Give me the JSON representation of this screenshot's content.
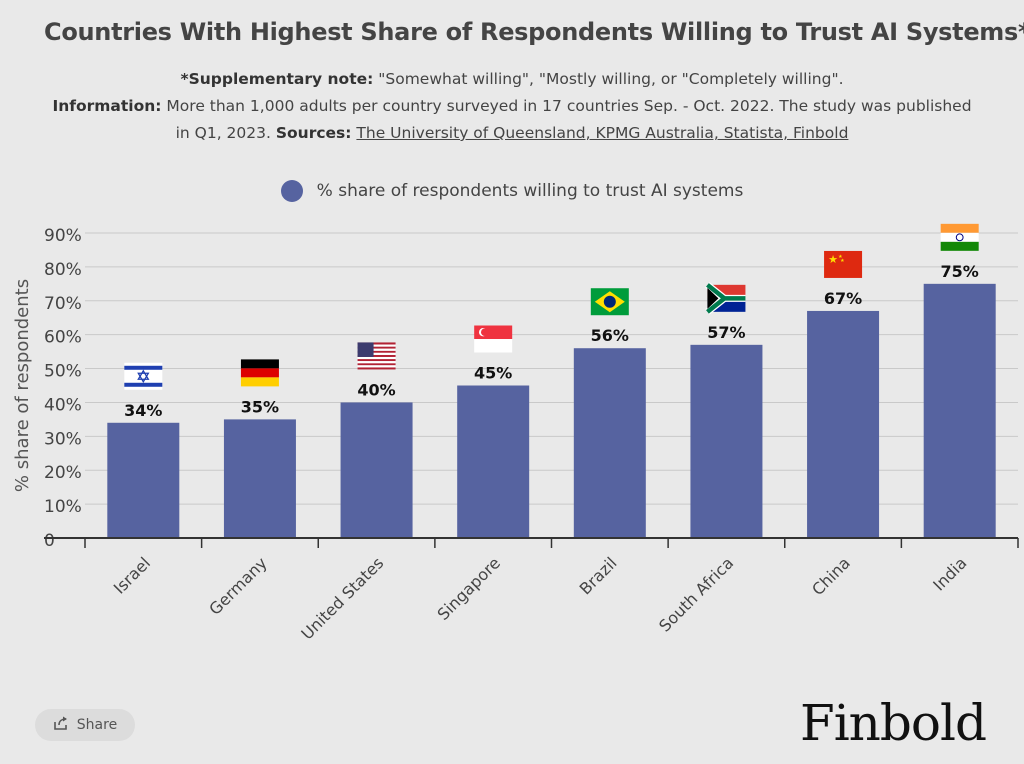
{
  "header": {
    "title": "Countries With Highest Share of Respondents Willing to Trust AI Systems*",
    "note_label": "*Supplementary note:",
    "note_text": " \"Somewhat willing\", \"Mostly willing, or \"Completely willing\".",
    "info_label": "Information:",
    "info_text_1": " More than 1,000 adults per country surveyed in 17 countries Sep. - Oct. 2022. The study was published",
    "info_text_2": "in Q1, 2023. ",
    "sources_label": "Sources:",
    "sources_text": "The University of Queensland, KPMG Australia, Statista, Finbold"
  },
  "chart_data": {
    "type": "bar",
    "title": "Countries With Highest Share of Respondents Willing to Trust AI Systems*",
    "categories": [
      "Israel",
      "Germany",
      "United States",
      "Singapore",
      "Brazil",
      "South Africa",
      "China",
      "India"
    ],
    "series": [
      {
        "name": "% share of respondents willing to trust AI systems",
        "values": [
          34,
          35,
          40,
          45,
          56,
          57,
          67,
          75
        ]
      }
    ],
    "data_labels": [
      "34%",
      "35%",
      "40%",
      "45%",
      "56%",
      "57%",
      "67%",
      "75%"
    ],
    "ylabel": "% share of respondents",
    "xlabel": "",
    "ylim": [
      0,
      90
    ],
    "yticks": [
      0,
      10,
      20,
      30,
      40,
      50,
      60,
      70,
      80,
      90
    ],
    "ytick_labels": [
      "0",
      "10%",
      "20%",
      "30%",
      "40%",
      "50%",
      "60%",
      "70%",
      "80%",
      "90%"
    ],
    "grid": true,
    "legend_position": "top-center",
    "bar_color": "#5663a0"
  },
  "footer": {
    "share_label": "Share",
    "share_icon": "share-icon",
    "brand": "Finbold"
  }
}
